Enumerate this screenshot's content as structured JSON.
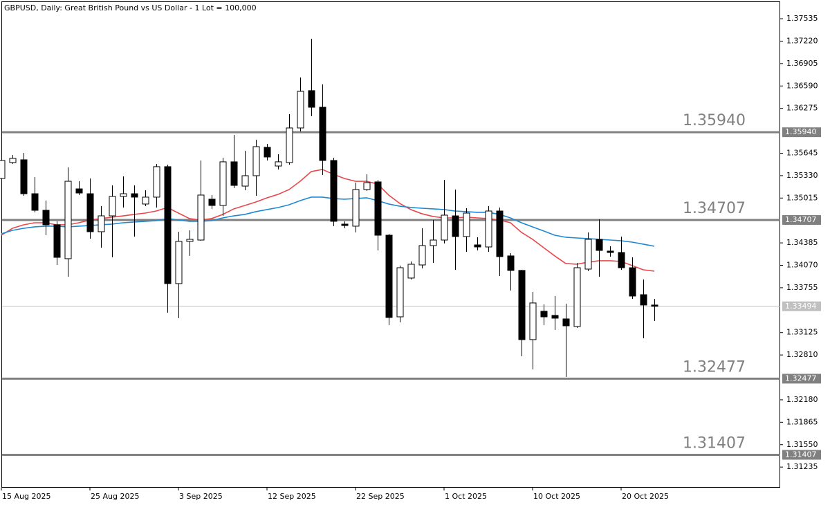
{
  "chart_data": {
    "type": "candlestick",
    "title": "GBPUSD, Daily:  Great British Pound vs US Dollar - 1 Lot = 100,000",
    "categories": [
      "15 Aug 2025",
      null,
      null,
      null,
      null,
      null,
      null,
      null,
      "25 Aug 2025",
      null,
      null,
      null,
      null,
      null,
      null,
      null,
      "3 Sep 2025",
      null,
      null,
      null,
      null,
      null,
      null,
      null,
      "12 Sep 2025",
      null,
      null,
      null,
      null,
      null,
      null,
      null,
      "22 Sep 2025",
      null,
      null,
      null,
      null,
      null,
      null,
      null,
      "1 Oct 2025",
      null,
      null,
      null,
      null,
      null,
      null,
      null,
      "10 Oct 2025",
      null,
      null,
      null,
      null,
      null,
      null,
      null,
      "20 Oct 2025",
      null,
      null,
      null
    ],
    "open": [
      1.3529,
      1.35514,
      1.35553,
      1.35076,
      1.34843,
      1.34639,
      1.34163,
      1.35144,
      1.35076,
      1.34542,
      1.34765,
      1.35038,
      1.35076,
      1.34931,
      1.35028,
      1.35456,
      1.33813,
      1.34406,
      1.34425,
      1.34999,
      1.34911,
      1.35524,
      1.35183,
      1.35329,
      1.35728,
      1.35465,
      1.35514,
      1.36,
      1.36525,
      1.36291,
      1.35543,
      1.34649,
      1.3462,
      1.35135,
      1.35242,
      1.34493,
      1.33346,
      1.33891,
      1.34075,
      1.34347,
      1.34425,
      1.34765,
      1.34474,
      1.34357,
      1.34328,
      1.34833,
      1.34202,
      1.33998,
      1.33026,
      1.33424,
      1.33366,
      1.33317,
      1.3321,
      1.34017,
      1.34435,
      1.3427,
      1.3425,
      1.34036,
      1.33657,
      1.33512
    ],
    "high": [
      1.35611,
      1.35621,
      1.3565,
      1.3531,
      1.34979,
      1.34688,
      1.35446,
      1.35251,
      1.3529,
      1.34901,
      1.35193,
      1.35319,
      1.35193,
      1.35125,
      1.35494,
      1.35485,
      1.34542,
      1.34561,
      1.35543,
      1.35057,
      1.35582,
      1.35903,
      1.35679,
      1.35835,
      1.35776,
      1.3563,
      1.36194,
      1.36709,
      1.37254,
      1.36612,
      1.35582,
      1.34688,
      1.35232,
      1.35349,
      1.35271,
      1.34513,
      1.34066,
      1.34124,
      1.3459,
      1.34707,
      1.35271,
      1.35135,
      1.34872,
      1.34464,
      1.34901,
      1.34882,
      1.34241,
      1.34007,
      1.33696,
      1.33521,
      1.33638,
      1.33531,
      1.34104,
      1.34532,
      1.34717,
      1.34338,
      1.34474,
      1.34182,
      1.33871,
      1.33599
    ],
    "low": [
      1.35271,
      1.35494,
      1.35047,
      1.34814,
      1.34493,
      1.34075,
      1.3391,
      1.35057,
      1.34445,
      1.34318,
      1.34182,
      1.34882,
      1.34474,
      1.34901,
      1.34882,
      1.33405,
      1.33327,
      1.34202,
      1.34415,
      1.34863,
      1.34765,
      1.35154,
      1.35125,
      1.35047,
      1.35543,
      1.35417,
      1.35485,
      1.35951,
      1.36165,
      1.35339,
      1.3462,
      1.3459,
      1.34532,
      1.35115,
      1.34279,
      1.3323,
      1.33268,
      1.33871,
      1.34027,
      1.34104,
      1.34377,
      1.34007,
      1.3426,
      1.34279,
      1.3426,
      1.3392,
      1.33716,
      1.32792,
      1.32608,
      1.3323,
      1.33162,
      1.32501,
      1.33191,
      1.33988,
      1.3391,
      1.34192,
      1.34007,
      1.33599,
      1.33045,
      1.33288
    ],
    "close": [
      1.35543,
      1.35572,
      1.35076,
      1.34843,
      1.34639,
      1.34182,
      1.35251,
      1.35086,
      1.34542,
      1.34765,
      1.35038,
      1.35076,
      1.35028,
      1.35028,
      1.35456,
      1.33813,
      1.34406,
      1.34435,
      1.35057,
      1.34911,
      1.35524,
      1.35193,
      1.35329,
      1.35737,
      1.35592,
      1.35524,
      1.36,
      1.36515,
      1.36291,
      1.35543,
      1.34688,
      1.34629,
      1.35135,
      1.35232,
      1.34493,
      1.33337,
      1.34036,
      1.34085,
      1.34347,
      1.34425,
      1.34775,
      1.34474,
      1.34804,
      1.34328,
      1.34833,
      1.34192,
      1.33998,
      1.33026,
      1.33541,
      1.33346,
      1.33327,
      1.3322,
      1.34036,
      1.34435,
      1.34279,
      1.3425,
      1.34036,
      1.33638,
      1.33512,
      1.33494
    ],
    "up_color": "#ffffff",
    "down_color": "#000000",
    "series": [
      {
        "color": "#e8484c",
        "values": [
          1.34493,
          1.3459,
          1.34639,
          1.34668,
          1.34668,
          1.34639,
          1.34639,
          1.34668,
          1.34707,
          1.34727,
          1.34746,
          1.34765,
          1.34785,
          1.34804,
          1.34833,
          1.34882,
          1.34804,
          1.34727,
          1.34707,
          1.34727,
          1.34785,
          1.34863,
          1.34911,
          1.3496,
          1.35018,
          1.35067,
          1.35135,
          1.35251,
          1.35387,
          1.35417,
          1.35349,
          1.3529,
          1.35251,
          1.35251,
          1.35213,
          1.35057,
          1.3494,
          1.34853,
          1.34795,
          1.34756,
          1.34736,
          1.34736,
          1.34746,
          1.34736,
          1.34727,
          1.34707,
          1.34668,
          1.34532,
          1.34435,
          1.34318,
          1.34202,
          1.34095,
          1.34085,
          1.34114,
          1.34134,
          1.34134,
          1.34124,
          1.34066,
          1.34007,
          1.33988
        ]
      },
      {
        "color": "#1e88d2",
        "values": [
          1.34513,
          1.34561,
          1.3459,
          1.3461,
          1.3462,
          1.3462,
          1.3461,
          1.3462,
          1.34629,
          1.34639,
          1.34649,
          1.34668,
          1.34678,
          1.34688,
          1.34697,
          1.34727,
          1.34707,
          1.34688,
          1.34688,
          1.34697,
          1.34736,
          1.34765,
          1.34785,
          1.34824,
          1.34853,
          1.34882,
          1.34921,
          1.34979,
          1.35028,
          1.35028,
          1.35008,
          1.34999,
          1.35008,
          1.35018,
          1.34979,
          1.34931,
          1.34901,
          1.34882,
          1.34872,
          1.34863,
          1.34853,
          1.34833,
          1.34824,
          1.34814,
          1.34814,
          1.34785,
          1.34736,
          1.34668,
          1.3461,
          1.34552,
          1.34493,
          1.34464,
          1.34454,
          1.34445,
          1.34435,
          1.34425,
          1.34415,
          1.34396,
          1.34367,
          1.34338
        ]
      }
    ],
    "levels": {
      "values": [
        1.3594,
        1.34707,
        1.32477,
        1.31407
      ],
      "value_labels": [
        "1.35940",
        "1.34707",
        "1.32477",
        "1.31407"
      ],
      "color": "#808080"
    },
    "current_price": 1.33494,
    "ylim": [
      1.30945,
      1.37798
    ],
    "yticks": [
      1.37535,
      {
        "value": 1.3722,
        "label": "1.37220"
      },
      1.36905,
      {
        "value": 1.3659,
        "label": "1.36590"
      },
      1.36275,
      1.35645,
      {
        "value": 1.3533,
        "label": "1.35330"
      },
      1.35015,
      1.34385,
      {
        "value": 1.3407,
        "label": "1.34070"
      },
      1.33755,
      1.33125,
      {
        "value": 1.3281,
        "label": "1.32810"
      },
      {
        "value": 1.3218,
        "label": "1.32180"
      },
      1.31865,
      {
        "value": 1.3155,
        "label": "1.31550"
      },
      1.31235
    ]
  }
}
